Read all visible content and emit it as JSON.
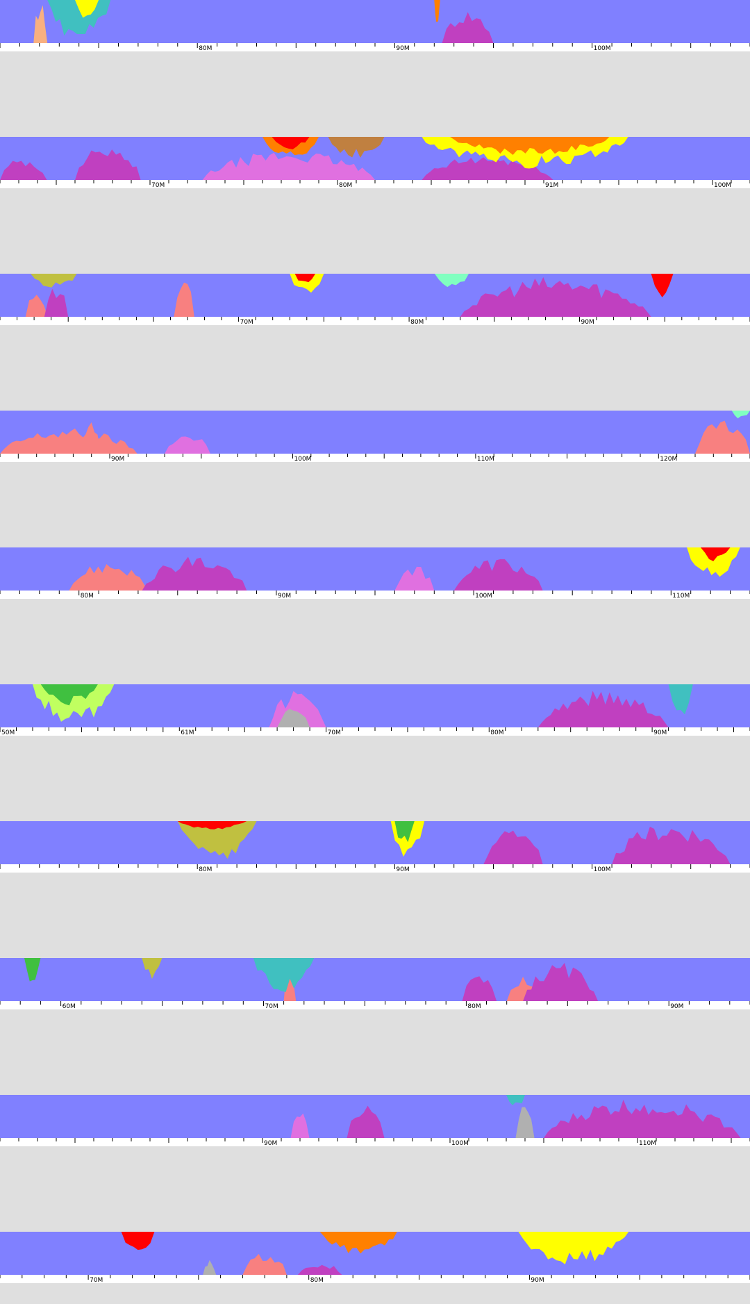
{
  "palette": {
    "background": "#dfdfdf",
    "band": "#8080ff",
    "axis_bg": "#ffffff",
    "magenta": "#c040c0",
    "pink": "#e070e0",
    "salmon": "#f88080",
    "peach": "#f8b080",
    "teal": "#40c0c0",
    "red": "#ff0000",
    "orange": "#ff8000",
    "brown": "#c08040",
    "yellow": "#ffff00",
    "lime": "#c0ff60",
    "green": "#40c040",
    "olive": "#c0c040",
    "gray": "#b0b0b0",
    "mint": "#80ffc0"
  },
  "chart_data": [
    {
      "type": "area",
      "xlim": [
        70,
        108
      ],
      "ticks": [
        {
          "v": 80,
          "label": "80M"
        },
        {
          "v": 90,
          "label": "90M"
        },
        {
          "v": 100,
          "label": "100M"
        }
      ],
      "bottom_peaks": [
        {
          "c": "peach",
          "x0": 71.7,
          "x1": 72.4,
          "h": 1.0
        },
        {
          "c": "magenta",
          "x0": 92.4,
          "x1": 95.0,
          "h": 0.8
        }
      ],
      "top_dips": [
        {
          "c": "teal",
          "x0": 72.4,
          "x1": 75.6,
          "h": 1.0
        },
        {
          "c": "yellow",
          "x0": 73.8,
          "x1": 75.0,
          "h": 0.5
        },
        {
          "c": "orange",
          "x0": 92.0,
          "x1": 92.3,
          "h": 0.6
        }
      ]
    },
    {
      "type": "area",
      "xlim": [
        62,
        102
      ],
      "ticks": [
        {
          "v": 70,
          "label": "70M"
        },
        {
          "v": 80,
          "label": "80M"
        },
        {
          "v": 91,
          "label": "91M"
        },
        {
          "v": 100,
          "label": "100M"
        }
      ],
      "bottom_peaks": [
        {
          "c": "magenta",
          "x0": 62.0,
          "x1": 64.5,
          "h": 0.55
        },
        {
          "c": "magenta",
          "x0": 66.0,
          "x1": 69.5,
          "h": 0.9
        },
        {
          "c": "pink",
          "x0": 72.8,
          "x1": 82.0,
          "h": 0.7
        },
        {
          "c": "magenta",
          "x0": 84.5,
          "x1": 91.5,
          "h": 0.6
        }
      ],
      "top_dips": [
        {
          "c": "orange",
          "x0": 76.0,
          "x1": 79.0,
          "h": 0.6
        },
        {
          "c": "red",
          "x0": 76.5,
          "x1": 78.5,
          "h": 0.3
        },
        {
          "c": "brown",
          "x0": 79.5,
          "x1": 82.5,
          "h": 0.5
        },
        {
          "c": "yellow",
          "x0": 84.5,
          "x1": 95.5,
          "h": 0.75
        },
        {
          "c": "orange",
          "x0": 86.0,
          "x1": 94.5,
          "h": 0.45
        }
      ]
    },
    {
      "type": "area",
      "xlim": [
        56,
        100
      ],
      "ticks": [
        {
          "v": 70,
          "label": "70M"
        },
        {
          "v": 80,
          "label": "80M"
        },
        {
          "v": 90,
          "label": "90M"
        },
        {
          "v": 100,
          "label": "100M"
        }
      ],
      "bottom_peaks": [
        {
          "c": "salmon",
          "x0": 57.5,
          "x1": 58.8,
          "h": 0.7
        },
        {
          "c": "magenta",
          "x0": 58.6,
          "x1": 60.0,
          "h": 0.75
        },
        {
          "c": "salmon",
          "x0": 66.2,
          "x1": 67.4,
          "h": 0.9
        },
        {
          "c": "magenta",
          "x0": 83.0,
          "x1": 94.2,
          "h": 0.95
        }
      ],
      "top_dips": [
        {
          "c": "olive",
          "x0": 57.8,
          "x1": 60.5,
          "h": 0.35
        },
        {
          "c": "yellow",
          "x0": 73.0,
          "x1": 75.0,
          "h": 0.55
        },
        {
          "c": "red",
          "x0": 73.3,
          "x1": 74.5,
          "h": 0.25
        },
        {
          "c": "mint",
          "x0": 81.5,
          "x1": 83.5,
          "h": 0.4
        },
        {
          "c": "red",
          "x0": 94.2,
          "x1": 95.5,
          "h": 0.6
        }
      ]
    },
    {
      "type": "area",
      "xlim": [
        84,
        125
      ],
      "ticks": [
        {
          "v": 90,
          "label": "90M"
        },
        {
          "v": 100,
          "label": "100M"
        },
        {
          "v": 110,
          "label": "110M"
        },
        {
          "v": 120,
          "label": "120M"
        }
      ],
      "bottom_peaks": [
        {
          "c": "salmon",
          "x0": 84.0,
          "x1": 91.5,
          "h": 0.6
        },
        {
          "c": "salmon",
          "x0": 88.5,
          "x1": 89.5,
          "h": 0.9
        },
        {
          "c": "pink",
          "x0": 93.0,
          "x1": 95.5,
          "h": 0.55
        },
        {
          "c": "salmon",
          "x0": 122.0,
          "x1": 125.0,
          "h": 0.85
        }
      ],
      "top_dips": [
        {
          "c": "mint",
          "x0": 124.0,
          "x1": 125.0,
          "h": 0.2
        }
      ]
    },
    {
      "type": "area",
      "xlim": [
        76,
        114
      ],
      "ticks": [
        {
          "v": 80,
          "label": "80M"
        },
        {
          "v": 90,
          "label": "90M"
        },
        {
          "v": 100,
          "label": "100M"
        },
        {
          "v": 110,
          "label": "110M"
        }
      ],
      "bottom_peaks": [
        {
          "c": "salmon",
          "x0": 79.5,
          "x1": 83.5,
          "h": 0.7
        },
        {
          "c": "magenta",
          "x0": 83.2,
          "x1": 88.5,
          "h": 0.85
        },
        {
          "c": "pink",
          "x0": 96.0,
          "x1": 98.0,
          "h": 0.6
        },
        {
          "c": "magenta",
          "x0": 99.0,
          "x1": 103.5,
          "h": 0.8
        }
      ],
      "top_dips": [
        {
          "c": "yellow",
          "x0": 110.8,
          "x1": 113.5,
          "h": 0.75
        },
        {
          "c": "red",
          "x0": 111.5,
          "x1": 113.0,
          "h": 0.35
        }
      ]
    },
    {
      "type": "area",
      "xlim": [
        50,
        96
      ],
      "ticks": [
        {
          "v": 50,
          "label": "50M"
        },
        {
          "v": 61,
          "label": "61M"
        },
        {
          "v": 70,
          "label": "70M"
        },
        {
          "v": 80,
          "label": "80M"
        },
        {
          "v": 90,
          "label": "90M"
        }
      ],
      "bottom_peaks": [
        {
          "c": "pink",
          "x0": 66.5,
          "x1": 70.0,
          "h": 0.9
        },
        {
          "c": "gray",
          "x0": 67.0,
          "x1": 69.0,
          "h": 0.55
        },
        {
          "c": "magenta",
          "x0": 83.0,
          "x1": 91.0,
          "h": 0.9
        }
      ],
      "top_dips": [
        {
          "c": "lime",
          "x0": 52.0,
          "x1": 57.0,
          "h": 0.95
        },
        {
          "c": "green",
          "x0": 52.5,
          "x1": 56.0,
          "h": 0.5
        },
        {
          "c": "teal",
          "x0": 91.0,
          "x1": 92.5,
          "h": 0.8
        }
      ]
    },
    {
      "type": "area",
      "xlim": [
        70,
        108
      ],
      "ticks": [
        {
          "v": 80,
          "label": "80M"
        },
        {
          "v": 90,
          "label": "90M"
        },
        {
          "v": 100,
          "label": "100M"
        }
      ],
      "bottom_peaks": [
        {
          "c": "magenta",
          "x0": 94.5,
          "x1": 97.5,
          "h": 0.9
        },
        {
          "c": "magenta",
          "x0": 101.0,
          "x1": 107.0,
          "h": 1.0
        }
      ],
      "top_dips": [
        {
          "c": "olive",
          "x0": 79.0,
          "x1": 83.0,
          "h": 0.95
        },
        {
          "c": "red",
          "x0": 79.0,
          "x1": 82.5,
          "h": 0.2
        },
        {
          "c": "yellow",
          "x0": 89.8,
          "x1": 91.5,
          "h": 0.95
        },
        {
          "c": "green",
          "x0": 90.0,
          "x1": 91.0,
          "h": 0.6
        }
      ]
    },
    {
      "type": "area",
      "xlim": [
        57,
        94
      ],
      "ticks": [
        {
          "v": 60,
          "label": "60M"
        },
        {
          "v": 70,
          "label": "70M"
        },
        {
          "v": 80,
          "label": "80M"
        },
        {
          "v": 90,
          "label": "90M"
        }
      ],
      "bottom_peaks": [
        {
          "c": "salmon",
          "x0": 71.0,
          "x1": 71.6,
          "h": 0.85
        },
        {
          "c": "magenta",
          "x0": 79.8,
          "x1": 81.5,
          "h": 0.7
        },
        {
          "c": "salmon",
          "x0": 82.0,
          "x1": 84.0,
          "h": 0.6
        },
        {
          "c": "magenta",
          "x0": 82.8,
          "x1": 86.5,
          "h": 0.9
        }
      ],
      "top_dips": [
        {
          "c": "green",
          "x0": 58.2,
          "x1": 59.0,
          "h": 0.6
        },
        {
          "c": "olive",
          "x0": 64.0,
          "x1": 65.0,
          "h": 0.5
        },
        {
          "c": "teal",
          "x0": 69.5,
          "x1": 72.5,
          "h": 0.8
        }
      ]
    },
    {
      "type": "area",
      "xlim": [
        76,
        116
      ],
      "ticks": [
        {
          "v": 90,
          "label": "90M"
        },
        {
          "v": 100,
          "label": "100M"
        },
        {
          "v": 110,
          "label": "110M"
        }
      ],
      "bottom_peaks": [
        {
          "c": "pink",
          "x0": 91.5,
          "x1": 92.5,
          "h": 0.65
        },
        {
          "c": "magenta",
          "x0": 94.5,
          "x1": 96.5,
          "h": 0.9
        },
        {
          "c": "gray",
          "x0": 103.5,
          "x1": 104.5,
          "h": 0.8
        },
        {
          "c": "magenta",
          "x0": 105.0,
          "x1": 115.5,
          "h": 0.95
        }
      ],
      "top_dips": [
        {
          "c": "teal",
          "x0": 103.0,
          "x1": 104.0,
          "h": 0.3
        }
      ]
    },
    {
      "type": "area",
      "xlim": [
        66,
        100
      ],
      "ticks": [
        {
          "v": 70,
          "label": "70M"
        },
        {
          "v": 80,
          "label": "80M"
        },
        {
          "v": 90,
          "label": "90M"
        }
      ],
      "bottom_peaks": [
        {
          "c": "gray",
          "x0": 75.2,
          "x1": 75.8,
          "h": 0.35
        },
        {
          "c": "salmon",
          "x0": 77.0,
          "x1": 79.0,
          "h": 0.55
        },
        {
          "c": "magenta",
          "x0": 79.5,
          "x1": 81.5,
          "h": 0.3
        }
      ],
      "top_dips": [
        {
          "c": "red",
          "x0": 71.5,
          "x1": 73.0,
          "h": 0.5
        },
        {
          "c": "orange",
          "x0": 80.5,
          "x1": 84.0,
          "h": 0.55
        },
        {
          "c": "yellow",
          "x0": 89.5,
          "x1": 94.5,
          "h": 0.8
        }
      ]
    }
  ]
}
